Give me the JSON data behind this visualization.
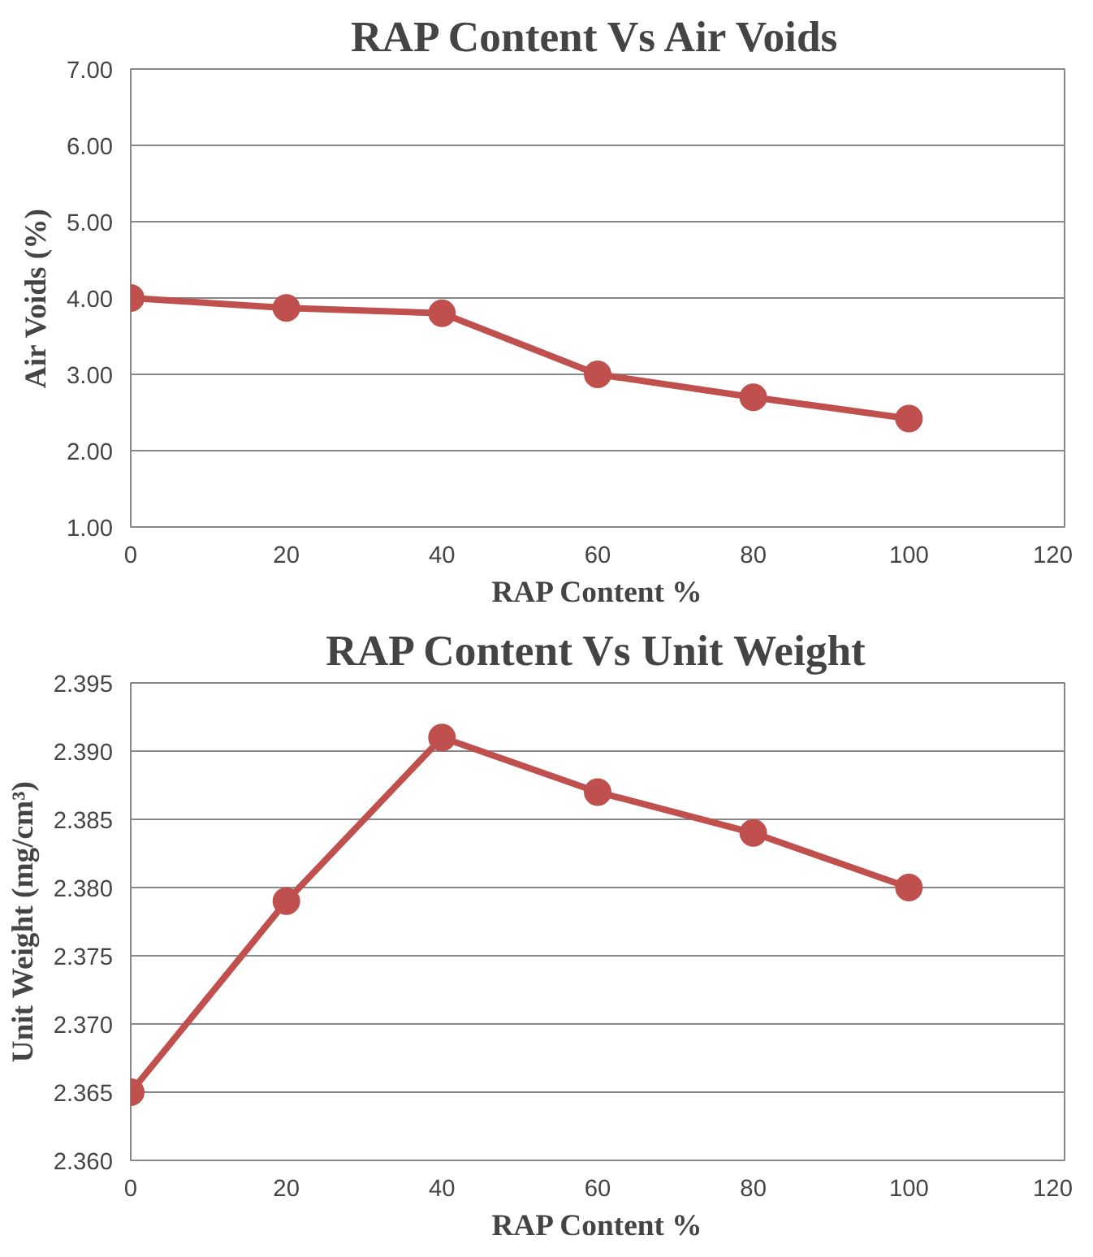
{
  "chart_data": [
    {
      "type": "line",
      "title": "RAP Content Vs Air Voids",
      "xlabel": "RAP Content %",
      "ylabel": "Air Voids (%)",
      "x": [
        0,
        20,
        40,
        60,
        80,
        100
      ],
      "series": [
        {
          "color": "#c0504d",
          "values": [
            4.0,
            3.87,
            3.8,
            3.0,
            2.7,
            2.42
          ]
        }
      ],
      "xlim": [
        0,
        120
      ],
      "xticks": [
        0,
        20,
        40,
        60,
        80,
        100,
        120
      ],
      "ylim": [
        1,
        7
      ],
      "yticks": [
        {
          "value": 1,
          "label": "1.00"
        },
        {
          "value": 2,
          "label": "2.00"
        },
        {
          "value": 3,
          "label": "3.00"
        },
        {
          "value": 4,
          "label": "4.00"
        },
        {
          "value": 5,
          "label": "5.00"
        },
        {
          "value": 6,
          "label": "6.00"
        },
        {
          "value": 7,
          "label": "7.00"
        }
      ],
      "grid": "y",
      "marker": "circle",
      "line_style": "solid"
    },
    {
      "type": "line",
      "title": "RAP Content Vs Unit Weight",
      "xlabel": "RAP Content %",
      "ylabel": "Unit Weight (mg/cm³)",
      "x": [
        0,
        20,
        40,
        60,
        80,
        100
      ],
      "series": [
        {
          "color": "#c0504d",
          "values": [
            2.365,
            2.379,
            2.391,
            2.387,
            2.384,
            2.38
          ]
        }
      ],
      "xlim": [
        0,
        120
      ],
      "xticks": [
        0,
        20,
        40,
        60,
        80,
        100,
        120
      ],
      "ylim": [
        2.36,
        2.395
      ],
      "yticks": [
        {
          "value": 2.36,
          "label": "2.360"
        },
        {
          "value": 2.365,
          "label": "2.365"
        },
        {
          "value": 2.37,
          "label": "2.370"
        },
        {
          "value": 2.375,
          "label": "2.375"
        },
        {
          "value": 2.38,
          "label": "2.380"
        },
        {
          "value": 2.385,
          "label": "2.385"
        },
        {
          "value": 2.39,
          "label": "2.390"
        },
        {
          "value": 2.395,
          "label": "2.395"
        }
      ],
      "grid": "y",
      "marker": "circle",
      "line_style": "solid"
    }
  ]
}
